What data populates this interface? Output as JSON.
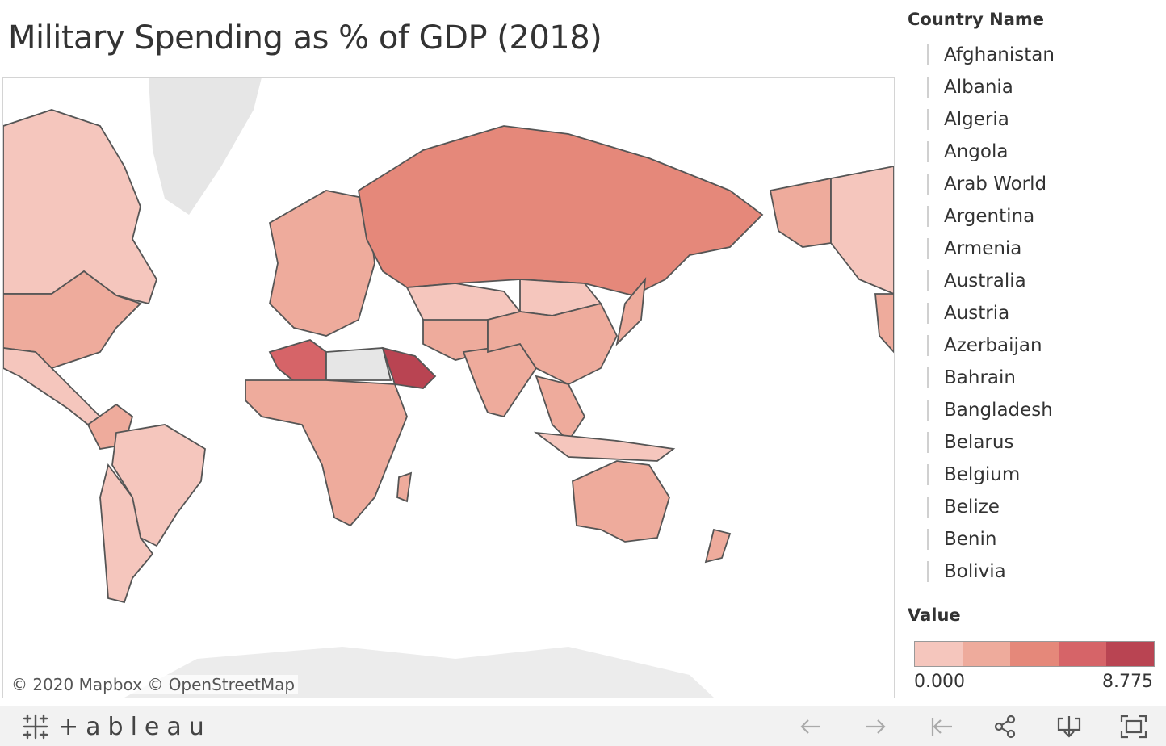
{
  "title": "Military Spending as % of GDP (2018)",
  "map": {
    "attribution": "© 2020 Mapbox  © OpenStreetMap",
    "colors": {
      "no_data": "#e6e6e6",
      "low": "#f5c6bd",
      "mid_low": "#eeab9c",
      "mid": "#e5887a",
      "high": "#d66468",
      "max": "#b94452",
      "border": "#555555"
    }
  },
  "legend": {
    "country_title": "Country Name",
    "countries": [
      "Afghanistan",
      "Albania",
      "Algeria",
      "Angola",
      "Arab World",
      "Argentina",
      "Armenia",
      "Australia",
      "Austria",
      "Azerbaijan",
      "Bahrain",
      "Bangladesh",
      "Belarus",
      "Belgium",
      "Belize",
      "Benin",
      "Bolivia"
    ],
    "value_title": "Value",
    "min": "0.000",
    "max": "8.775",
    "steps": [
      "#f5c6bd",
      "#eeab9c",
      "#e5887a",
      "#d66468",
      "#b94452"
    ]
  },
  "footer": {
    "logo_text": "+ableau",
    "icons": [
      "undo-icon",
      "redo-icon",
      "revert-icon",
      "share-icon",
      "download-icon",
      "fullscreen-icon"
    ]
  }
}
